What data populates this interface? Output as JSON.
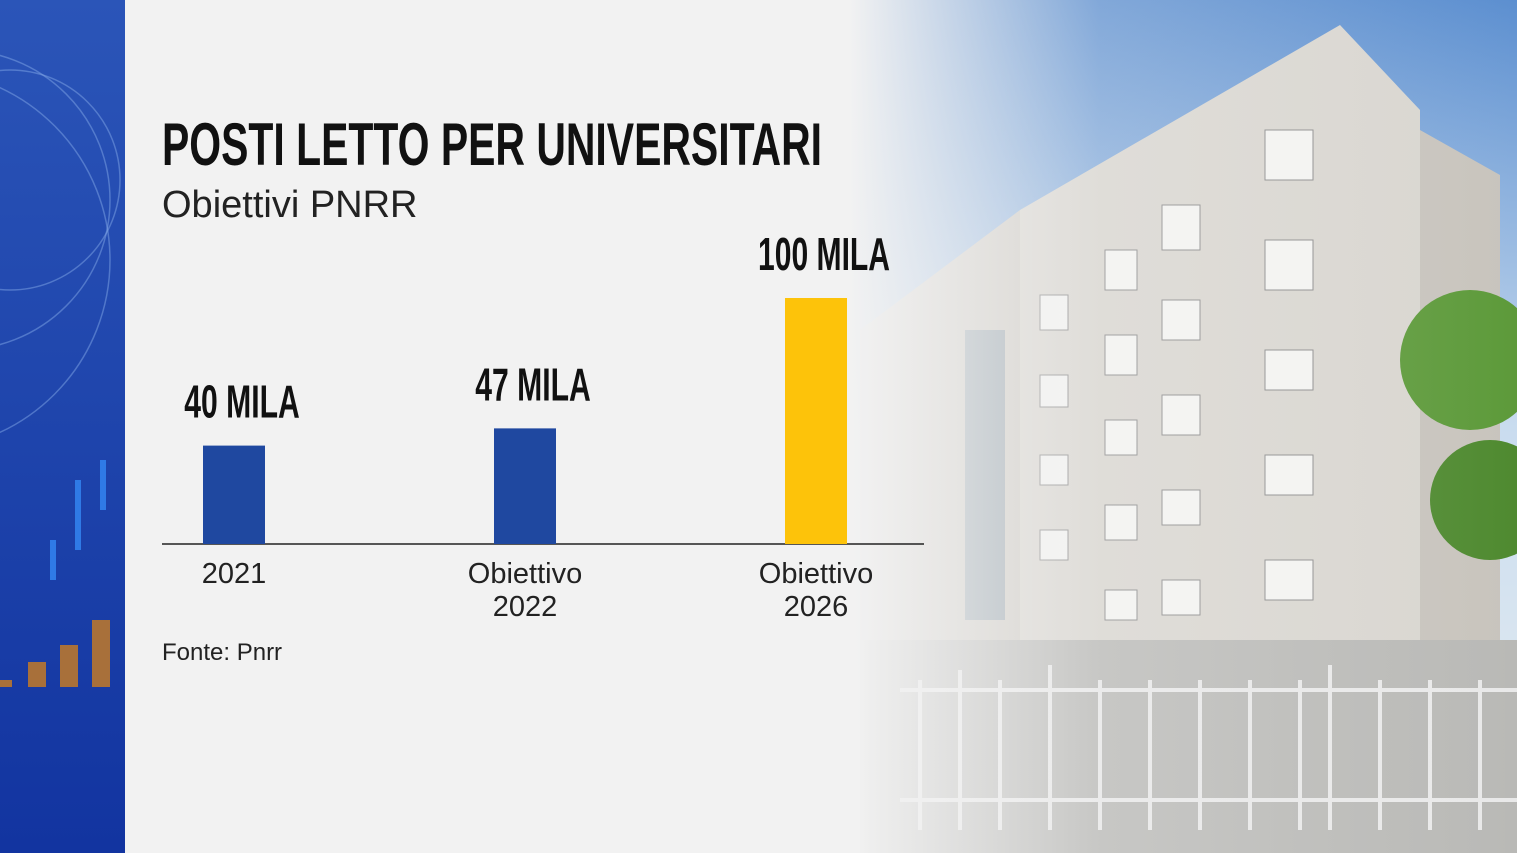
{
  "chart_data": {
    "type": "bar",
    "title": "POSTI LETTO PER UNIVERSITARI",
    "subtitle": "Obiettivi PNRR",
    "categories": [
      "2021",
      "Obiettivo 2022",
      "Obiettivo 2026"
    ],
    "values": [
      40,
      47,
      100
    ],
    "value_labels": [
      "40 MILA",
      "47 MILA",
      "100 MILA"
    ],
    "colors": [
      "#1f48a0",
      "#1f48a0",
      "#fdc30a"
    ],
    "source": "Fonte: Pnrr"
  }
}
